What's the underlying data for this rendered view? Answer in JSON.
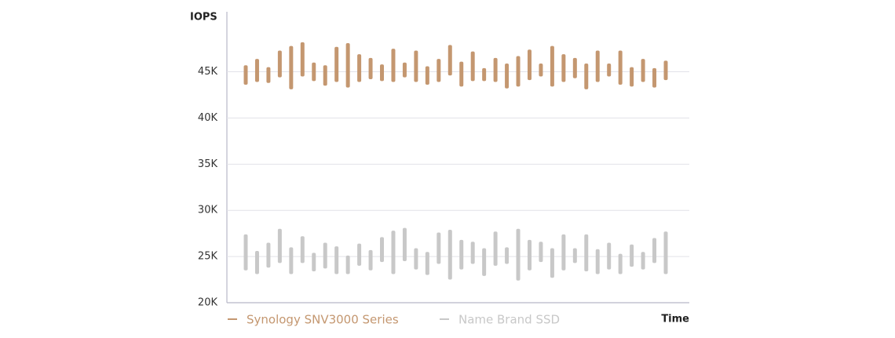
{
  "chart_data": {
    "type": "range-bar",
    "y_label": "IOPS",
    "x_label": "Time",
    "ylim": [
      20000,
      51500
    ],
    "yticks": [
      {
        "value": 20000,
        "label": "20K"
      },
      {
        "value": 25000,
        "label": "25K"
      },
      {
        "value": 30000,
        "label": "30K"
      },
      {
        "value": 35000,
        "label": "35K"
      },
      {
        "value": 40000,
        "label": "40K"
      },
      {
        "value": 45000,
        "label": "45K"
      }
    ],
    "grid": true,
    "series": [
      {
        "name": "Synology SNV3000 Series",
        "color": "#c49770",
        "values": [
          [
            43600,
            45700
          ],
          [
            43900,
            46400
          ],
          [
            43800,
            45500
          ],
          [
            44400,
            47300
          ],
          [
            43100,
            47800
          ],
          [
            44500,
            48200
          ],
          [
            44000,
            46000
          ],
          [
            43500,
            45700
          ],
          [
            43900,
            47700
          ],
          [
            43300,
            48100
          ],
          [
            43900,
            46900
          ],
          [
            44200,
            46500
          ],
          [
            44000,
            45800
          ],
          [
            43900,
            47500
          ],
          [
            44400,
            46000
          ],
          [
            43900,
            47300
          ],
          [
            43600,
            45600
          ],
          [
            43900,
            46400
          ],
          [
            44600,
            47900
          ],
          [
            43400,
            46100
          ],
          [
            44000,
            47200
          ],
          [
            44000,
            45400
          ],
          [
            43900,
            46500
          ],
          [
            43200,
            45900
          ],
          [
            43400,
            46700
          ],
          [
            44100,
            47400
          ],
          [
            44500,
            45900
          ],
          [
            43400,
            47800
          ],
          [
            43900,
            46900
          ],
          [
            44300,
            46500
          ],
          [
            43100,
            45900
          ],
          [
            43900,
            47300
          ],
          [
            44500,
            45900
          ],
          [
            43600,
            47300
          ],
          [
            43400,
            45500
          ],
          [
            43900,
            46400
          ],
          [
            43300,
            45400
          ],
          [
            44100,
            46200
          ]
        ]
      },
      {
        "name": "Name Brand SSD",
        "color": "#c8c8c8",
        "values": [
          [
            23500,
            27400
          ],
          [
            23100,
            25600
          ],
          [
            23800,
            26500
          ],
          [
            24300,
            28000
          ],
          [
            23100,
            26000
          ],
          [
            24300,
            27200
          ],
          [
            23400,
            25400
          ],
          [
            23700,
            26500
          ],
          [
            23100,
            26100
          ],
          [
            23100,
            25100
          ],
          [
            24000,
            26400
          ],
          [
            23500,
            25700
          ],
          [
            24400,
            27100
          ],
          [
            23100,
            27800
          ],
          [
            24500,
            28100
          ],
          [
            23600,
            25900
          ],
          [
            23000,
            25500
          ],
          [
            24200,
            27600
          ],
          [
            22500,
            27900
          ],
          [
            23600,
            26800
          ],
          [
            24200,
            26600
          ],
          [
            22900,
            25900
          ],
          [
            24000,
            27700
          ],
          [
            24200,
            26000
          ],
          [
            22400,
            28000
          ],
          [
            23500,
            26800
          ],
          [
            24400,
            26600
          ],
          [
            22700,
            25900
          ],
          [
            23500,
            27400
          ],
          [
            24300,
            25900
          ],
          [
            23400,
            27400
          ],
          [
            23100,
            25800
          ],
          [
            23600,
            26500
          ],
          [
            23100,
            25300
          ],
          [
            23900,
            26300
          ],
          [
            23600,
            25500
          ],
          [
            24300,
            27000
          ],
          [
            23100,
            27700
          ]
        ]
      }
    ]
  }
}
